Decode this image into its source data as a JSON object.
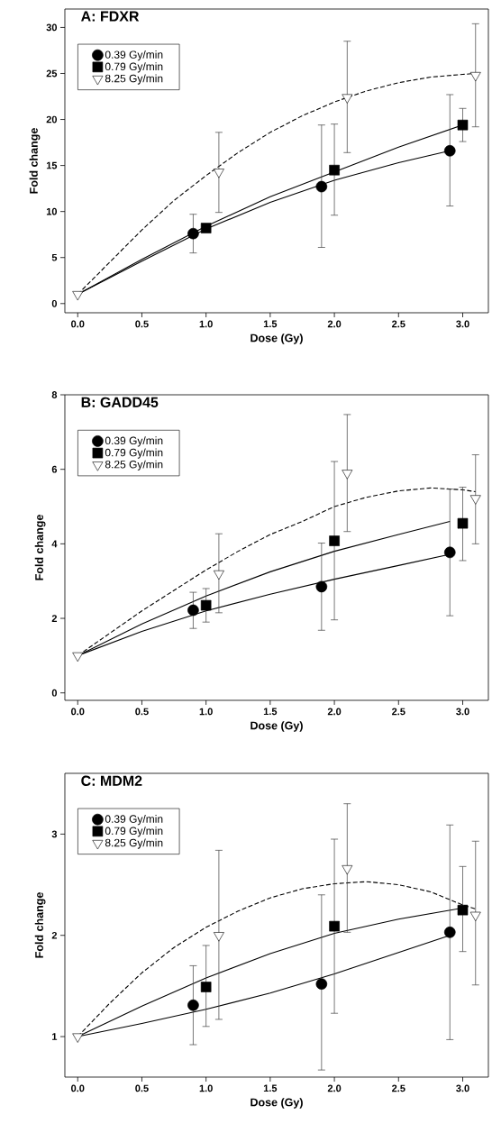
{
  "chart_data": [
    {
      "type": "scatter",
      "title": "A: FDXR",
      "xlabel": "Dose (Gy)",
      "ylabel": "Fold change",
      "xlim": [
        -0.1,
        3.2
      ],
      "ylim": [
        -1,
        32
      ],
      "xticks": [
        {
          "value": 0,
          "label": "0.0"
        },
        {
          "value": 0.5,
          "label": "0.5"
        },
        {
          "value": 1,
          "label": "1.0"
        },
        {
          "value": 1.5,
          "label": "1.5"
        },
        {
          "value": 2,
          "label": "2.0"
        },
        {
          "value": 2.5,
          "label": "2.5"
        },
        {
          "value": 3,
          "label": "3.0"
        }
      ],
      "yticks": [
        0,
        5,
        10,
        15,
        20,
        25,
        30
      ],
      "legend": "top left",
      "series": [
        {
          "type": "line",
          "color": "#000000",
          "line_style": "solid",
          "marker": "none",
          "x": [
            0,
            0.5,
            1,
            1.5,
            2,
            2.5,
            2.9
          ],
          "values": [
            1,
            4.6,
            8.1,
            11.0,
            13.4,
            15.3,
            16.6
          ]
        },
        {
          "type": "line",
          "color": "#000000",
          "line_style": "solid",
          "marker": "none",
          "x": [
            0,
            0.5,
            1,
            1.5,
            2,
            2.5,
            3
          ],
          "values": [
            1,
            4.8,
            8.4,
            11.6,
            14.3,
            17.0,
            19.4
          ]
        },
        {
          "type": "line",
          "color": "#000000",
          "line_style": "dashed",
          "marker": "none",
          "x": [
            0,
            0.25,
            0.5,
            0.75,
            1,
            1.25,
            1.5,
            1.75,
            2,
            2.25,
            2.5,
            2.75,
            3,
            3.1
          ],
          "values": [
            1,
            4.5,
            8.0,
            11.2,
            13.9,
            16.4,
            18.6,
            20.4,
            21.9,
            23.1,
            24.0,
            24.6,
            24.9,
            25.0
          ]
        },
        {
          "name": "0.39 Gy/min",
          "color": "#000000",
          "marker": "circle",
          "x": [
            0.9,
            1.9,
            2.9
          ],
          "values": [
            7.6,
            12.7,
            16.6
          ],
          "errors": [
            [
              5.5,
              9.7
            ],
            [
              6.1,
              19.4
            ],
            [
              10.6,
              22.7
            ]
          ]
        },
        {
          "name": "0.79 Gy/min",
          "color": "#000000",
          "marker": "square",
          "x": [
            1,
            2,
            3
          ],
          "values": [
            8.2,
            14.5,
            19.4
          ],
          "errors": [
            null,
            [
              9.6,
              19.5
            ],
            [
              17.6,
              21.2
            ]
          ]
        },
        {
          "name": "8.25 Gy/min",
          "color": "#ffffff",
          "marker": "triangle",
          "x": [
            0,
            1.1,
            2.1,
            3.1
          ],
          "values": [
            1,
            14.3,
            22.4,
            24.8
          ],
          "errors": [
            null,
            [
              9.9,
              18.6
            ],
            [
              16.4,
              28.5
            ],
            [
              19.2,
              30.4
            ]
          ]
        }
      ]
    },
    {
      "type": "scatter",
      "title": "B: GADD45",
      "xlabel": "Dose (Gy)",
      "ylabel": "Fold change",
      "xlim": [
        -0.1,
        3.2
      ],
      "ylim": [
        -0.2,
        8
      ],
      "xticks": [
        {
          "value": 0,
          "label": "0.0"
        },
        {
          "value": 0.5,
          "label": "0.5"
        },
        {
          "value": 1,
          "label": "1.0"
        },
        {
          "value": 1.5,
          "label": "1.5"
        },
        {
          "value": 2,
          "label": "2.0"
        },
        {
          "value": 2.5,
          "label": "2.5"
        },
        {
          "value": 3,
          "label": "3.0"
        }
      ],
      "yticks": [
        0,
        2,
        4,
        6,
        8
      ],
      "legend": "top left",
      "series": [
        {
          "type": "line",
          "color": "#000000",
          "line_style": "solid",
          "marker": "none",
          "x": [
            0,
            0.5,
            1,
            1.5,
            2,
            2.5,
            2.9
          ],
          "values": [
            1,
            1.65,
            2.2,
            2.65,
            3.05,
            3.42,
            3.72
          ]
        },
        {
          "type": "line",
          "color": "#000000",
          "line_style": "solid",
          "marker": "none",
          "x": [
            0,
            0.5,
            1,
            1.5,
            2,
            2.5,
            2.9
          ],
          "values": [
            1,
            1.85,
            2.6,
            3.25,
            3.8,
            4.25,
            4.6
          ]
        },
        {
          "type": "line",
          "color": "#000000",
          "line_style": "dashed",
          "marker": "none",
          "x": [
            0,
            0.25,
            0.5,
            0.75,
            1,
            1.25,
            1.5,
            1.75,
            2,
            2.25,
            2.5,
            2.75,
            3,
            3.1
          ],
          "values": [
            1,
            1.6,
            2.2,
            2.75,
            3.3,
            3.8,
            4.25,
            4.6,
            5.0,
            5.25,
            5.42,
            5.5,
            5.45,
            5.4
          ]
        },
        {
          "name": "0.39 Gy/min",
          "color": "#000000",
          "marker": "circle",
          "x": [
            0.9,
            1.9,
            2.9
          ],
          "values": [
            2.22,
            2.85,
            3.77
          ],
          "errors": [
            [
              1.73,
              2.7
            ],
            [
              1.68,
              4.02
            ],
            [
              2.07,
              5.47
            ]
          ]
        },
        {
          "name": "0.79 Gy/min",
          "color": "#000000",
          "marker": "square",
          "x": [
            1,
            2,
            3
          ],
          "values": [
            2.35,
            4.08,
            4.55
          ],
          "errors": [
            [
              1.9,
              2.8
            ],
            [
              1.96,
              6.21
            ],
            [
              3.55,
              5.52
            ]
          ]
        },
        {
          "name": "8.25 Gy/min",
          "color": "#ffffff",
          "marker": "triangle",
          "x": [
            0,
            1.1,
            2.1,
            3.1
          ],
          "values": [
            1,
            3.2,
            5.9,
            5.22
          ],
          "errors": [
            null,
            [
              2.15,
              4.27
            ],
            [
              4.33,
              7.47
            ],
            [
              4.0,
              6.39
            ]
          ]
        }
      ]
    },
    {
      "type": "scatter",
      "title": "C: MDM2",
      "xlabel": "Dose (Gy)",
      "ylabel": "Fold change",
      "xlim": [
        -0.1,
        3.2
      ],
      "ylim": [
        0.6,
        3.6
      ],
      "xticks": [
        {
          "value": 0,
          "label": "0.0"
        },
        {
          "value": 0.5,
          "label": "0.5"
        },
        {
          "value": 1,
          "label": "1.0"
        },
        {
          "value": 1.5,
          "label": "1.5"
        },
        {
          "value": 2,
          "label": "2.0"
        },
        {
          "value": 2.5,
          "label": "2.5"
        },
        {
          "value": 3,
          "label": "3.0"
        }
      ],
      "yticks": [
        1,
        2,
        3
      ],
      "legend": "top left",
      "series": [
        {
          "type": "line",
          "color": "#000000",
          "line_style": "solid",
          "marker": "none",
          "x": [
            0,
            0.5,
            1,
            1.5,
            2,
            2.5,
            2.9
          ],
          "values": [
            1,
            1.13,
            1.27,
            1.43,
            1.62,
            1.83,
            2.0
          ]
        },
        {
          "type": "line",
          "color": "#000000",
          "line_style": "solid",
          "marker": "none",
          "x": [
            0,
            0.5,
            1,
            1.5,
            2,
            2.5,
            3
          ],
          "values": [
            1,
            1.3,
            1.58,
            1.82,
            2.02,
            2.16,
            2.27
          ]
        },
        {
          "type": "line",
          "color": "#000000",
          "line_style": "dashed",
          "marker": "none",
          "x": [
            0,
            0.25,
            0.5,
            0.75,
            1,
            1.25,
            1.5,
            1.75,
            2,
            2.25,
            2.5,
            2.75,
            3,
            3.1
          ],
          "values": [
            1,
            1.33,
            1.63,
            1.88,
            2.08,
            2.24,
            2.37,
            2.46,
            2.51,
            2.53,
            2.5,
            2.43,
            2.3,
            2.26
          ]
        },
        {
          "name": "0.39 Gy/min",
          "color": "#000000",
          "marker": "circle",
          "x": [
            0.9,
            1.9,
            2.9
          ],
          "values": [
            1.31,
            1.52,
            2.03
          ],
          "errors": [
            [
              0.92,
              1.7
            ],
            [
              0.67,
              2.4
            ],
            [
              0.97,
              3.09
            ]
          ]
        },
        {
          "name": "0.79 Gy/min",
          "color": "#000000",
          "marker": "square",
          "x": [
            1,
            2,
            3
          ],
          "values": [
            1.49,
            2.09,
            2.25
          ],
          "errors": [
            [
              1.1,
              1.9
            ],
            [
              1.23,
              2.95
            ],
            [
              1.84,
              2.68
            ]
          ]
        },
        {
          "name": "8.25 Gy/min",
          "color": "#ffffff",
          "marker": "triangle",
          "x": [
            0,
            1.1,
            2.1,
            3.1
          ],
          "values": [
            1,
            2.0,
            2.66,
            2.2
          ],
          "errors": [
            null,
            [
              1.17,
              2.84
            ],
            [
              2.03,
              3.3
            ],
            [
              1.51,
              2.93
            ]
          ]
        }
      ]
    }
  ]
}
